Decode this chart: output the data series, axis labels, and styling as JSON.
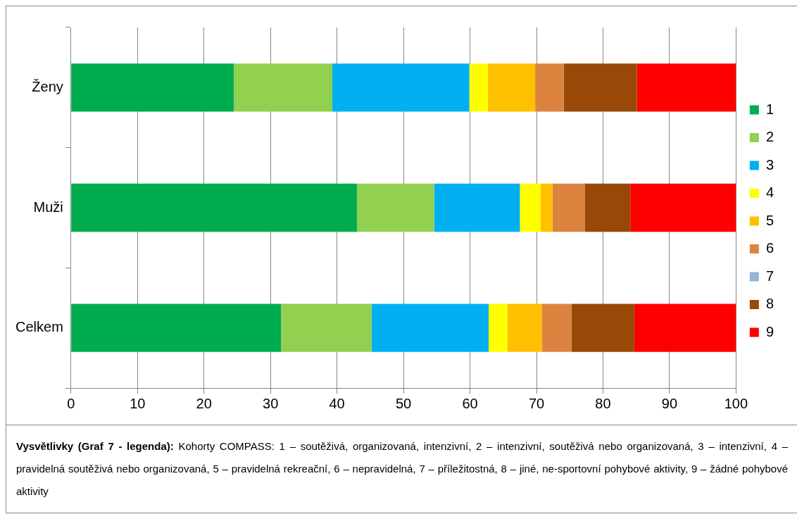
{
  "chart_data": {
    "type": "bar",
    "orientation": "horizontal",
    "stacked": true,
    "categories": [
      "Ženy",
      "Muži",
      "Celkem"
    ],
    "series": [
      {
        "name": "1",
        "color": "#00ad4e",
        "values": [
          24.5,
          43.0,
          31.6
        ]
      },
      {
        "name": "2",
        "color": "#92d050",
        "values": [
          14.8,
          11.6,
          13.6
        ]
      },
      {
        "name": "3",
        "color": "#00b0f0",
        "values": [
          20.6,
          12.9,
          17.6
        ]
      },
      {
        "name": "4",
        "color": "#ffff00",
        "values": [
          2.8,
          3.1,
          2.8
        ]
      },
      {
        "name": "5",
        "color": "#ffc000",
        "values": [
          7.1,
          1.8,
          5.2
        ]
      },
      {
        "name": "6",
        "color": "#dc843f",
        "values": [
          4.3,
          4.9,
          4.5
        ]
      },
      {
        "name": "7",
        "color": "#95b3d7",
        "values": [
          0,
          0,
          0
        ]
      },
      {
        "name": "8",
        "color": "#984807",
        "values": [
          11.0,
          6.8,
          9.4
        ]
      },
      {
        "name": "9",
        "color": "#ff0000",
        "values": [
          14.9,
          15.9,
          15.3
        ]
      }
    ],
    "xlim": [
      0,
      100
    ],
    "xticks": [
      0,
      10,
      20,
      30,
      40,
      50,
      60,
      70,
      80,
      90,
      100
    ],
    "grid": "x",
    "legend": "right",
    "annotations": [
      "Vysvětlivky (Graf 7 - legenda):",
      "Kohorty COMPASS: 1 – soutěživá, organizovaná, intenzivní, 2 – intenzivní, soutěživá nebo organizovaná, 3 – intenzivní, 4 – pravidelná soutěživá nebo organizovaná, 5 – pravidelná rekreační, 6 – nepravidelná, 7 – příležitostná, 8 – jiné, ne-sportovní pohybové aktivity, 9 – žádné pohybové aktivity"
    ]
  }
}
